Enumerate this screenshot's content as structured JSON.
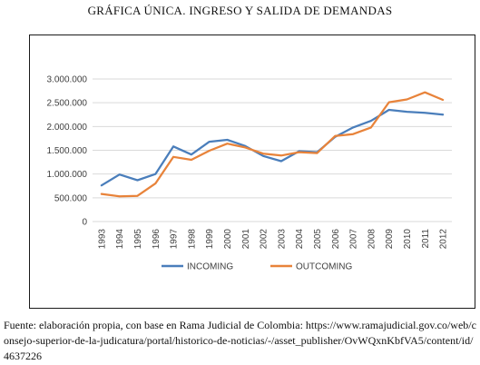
{
  "figure": {
    "title": "GRÁFICA ÚNICA. INGRESO Y SALIDA DE DEMANDAS",
    "source_note": "Fuente: elaboración propia, con base en Rama Judicial de Colombia: https://www.ramajudicial.gov.co/web/consejo-superior-de-la-judicatura/portal/historico-de-noticias/-/asset_publisher/OvWQxnKbfVA5/content/id/4637226"
  },
  "chart_data": {
    "type": "line",
    "title": "",
    "xlabel": "",
    "ylabel": "",
    "ylim": [
      0,
      3000000
    ],
    "yticks": [
      0,
      500000,
      1000000,
      1500000,
      2000000,
      2500000,
      3000000
    ],
    "ytick_labels": [
      "0",
      "500.000",
      "1.000.000",
      "1.500.000",
      "2.000.000",
      "2.500.000",
      "3.000.000"
    ],
    "grid": true,
    "legend_position": "bottom",
    "x": [
      "1993",
      "1994",
      "1995",
      "1996",
      "1997",
      "1998",
      "1999",
      "2000",
      "2001",
      "2002",
      "2003",
      "2004",
      "2005",
      "2006",
      "2007",
      "2008",
      "2009",
      "2010",
      "2011",
      "2012"
    ],
    "series": [
      {
        "name": "INCOMING",
        "color": "#4a7ebb",
        "values": [
          760000,
          990000,
          870000,
          1000000,
          1580000,
          1410000,
          1680000,
          1720000,
          1590000,
          1380000,
          1270000,
          1480000,
          1460000,
          1780000,
          1980000,
          2120000,
          2350000,
          2310000,
          2290000,
          2250000
        ]
      },
      {
        "name": "OUTCOMING",
        "color": "#e8833a",
        "values": [
          580000,
          530000,
          540000,
          800000,
          1360000,
          1300000,
          1490000,
          1640000,
          1560000,
          1430000,
          1390000,
          1460000,
          1440000,
          1800000,
          1840000,
          1980000,
          2510000,
          2570000,
          2720000,
          2560000
        ]
      }
    ]
  }
}
